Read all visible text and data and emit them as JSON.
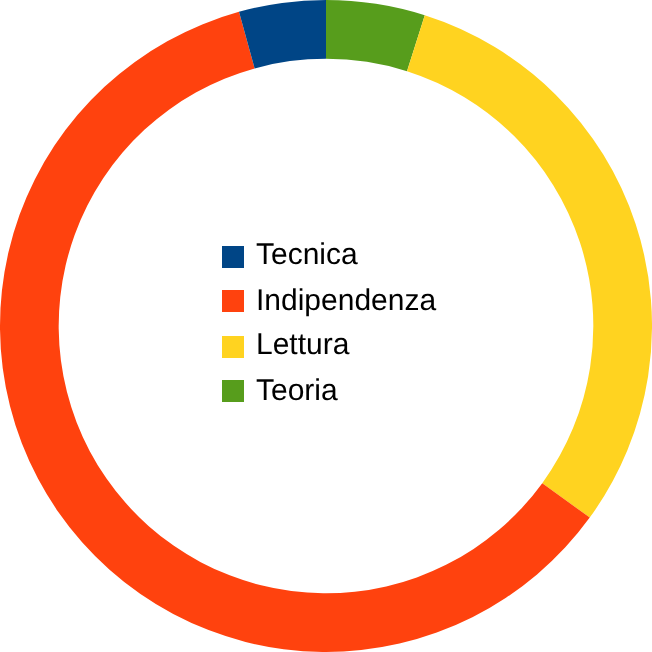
{
  "chart_data": {
    "type": "donut",
    "categories": [
      "Tecnica",
      "Indipendenza",
      "Lettura",
      "Teoria"
    ],
    "values": [
      4.3,
      60.7,
      30.1,
      4.9
    ],
    "colors": [
      "#004586",
      "#ff420e",
      "#ffd320",
      "#579d1c"
    ],
    "legend": "center"
  }
}
